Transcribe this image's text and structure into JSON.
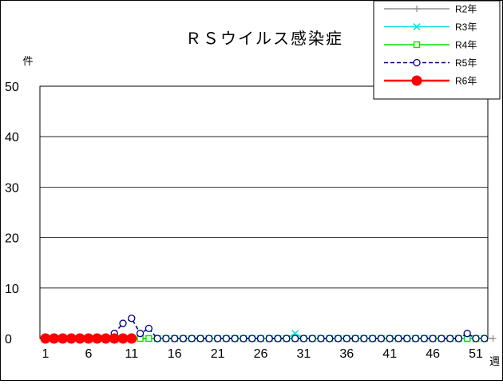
{
  "chart_data": {
    "type": "line",
    "title": "ＲＳウイルス感染症",
    "ylabel": "件",
    "xlabel": "週",
    "ylim": [
      0,
      50
    ],
    "yticks": [
      0,
      10,
      20,
      30,
      40,
      50
    ],
    "xlim": [
      1,
      53
    ],
    "xticks": [
      1,
      6,
      11,
      16,
      21,
      26,
      31,
      36,
      41,
      46,
      51
    ],
    "grid": true,
    "legend_position": "top-right",
    "series": [
      {
        "name": "R2年",
        "color": "#909090",
        "marker": "plus",
        "dash": false,
        "start_week": 1,
        "values": [
          0,
          0,
          0,
          0,
          0,
          0,
          0,
          0,
          0,
          0,
          0,
          0,
          0,
          0,
          0,
          0,
          0,
          0,
          0,
          0,
          0,
          0,
          0,
          0,
          0,
          0,
          0,
          0,
          0,
          0,
          0,
          0,
          0,
          0,
          0,
          0,
          0,
          0,
          0,
          0,
          0,
          0,
          0,
          0,
          0,
          0,
          0,
          0,
          0,
          0,
          0,
          0,
          0
        ]
      },
      {
        "name": "R3年",
        "color": "#00e0e0",
        "marker": "x",
        "dash": false,
        "start_week": 1,
        "values": [
          0,
          0,
          0,
          0,
          0,
          0,
          0,
          0,
          0,
          0,
          0,
          0,
          0,
          0,
          0,
          0,
          0,
          0,
          0,
          0,
          0,
          0,
          0,
          0,
          0,
          0,
          0,
          0,
          0,
          1,
          0,
          0,
          0,
          0,
          0,
          0,
          0,
          0,
          0,
          0,
          0,
          0,
          0,
          0,
          0,
          0,
          0,
          0,
          0,
          0,
          0,
          0
        ]
      },
      {
        "name": "R4年",
        "color": "#00e000",
        "marker": "square",
        "dash": false,
        "start_week": 1,
        "values": [
          0,
          0,
          0,
          0,
          0,
          0,
          0,
          0,
          0,
          0,
          0,
          0,
          0,
          0,
          0,
          0,
          0,
          0,
          0,
          0,
          0,
          0,
          0,
          0,
          0,
          0,
          0,
          0,
          0,
          0,
          0,
          0,
          0,
          0,
          0,
          0,
          0,
          0,
          0,
          0,
          0,
          0,
          0,
          0,
          0,
          0,
          0,
          0,
          0,
          0,
          0,
          0
        ]
      },
      {
        "name": "R5年",
        "color": "#000080",
        "marker": "circle-open",
        "dash": true,
        "start_week": 1,
        "values": [
          0,
          0,
          0,
          0,
          0,
          0,
          0,
          0,
          1,
          3,
          4,
          1,
          2,
          0,
          0,
          0,
          0,
          0,
          0,
          0,
          0,
          0,
          0,
          0,
          0,
          0,
          0,
          0,
          0,
          0,
          0,
          0,
          0,
          0,
          0,
          0,
          0,
          0,
          0,
          0,
          0,
          0,
          0,
          0,
          0,
          0,
          0,
          0,
          0,
          1,
          0,
          0
        ]
      },
      {
        "name": "R6年",
        "color": "#ff0000",
        "marker": "circle-filled",
        "dash": false,
        "start_week": 1,
        "values": [
          0,
          0,
          0,
          0,
          0,
          0,
          0,
          0,
          0,
          0,
          0
        ]
      }
    ]
  }
}
